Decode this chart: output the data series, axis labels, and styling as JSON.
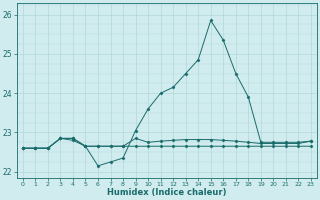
{
  "x_values": [
    0,
    1,
    2,
    3,
    4,
    5,
    6,
    7,
    8,
    9,
    10,
    11,
    12,
    13,
    14,
    15,
    16,
    17,
    18,
    19,
    20,
    21,
    22,
    23
  ],
  "line1": [
    22.6,
    22.6,
    22.6,
    22.85,
    22.85,
    22.65,
    22.65,
    22.65,
    22.65,
    22.65,
    22.65,
    22.65,
    22.65,
    22.65,
    22.65,
    22.65,
    22.65,
    22.65,
    22.65,
    22.65,
    22.65,
    22.65,
    22.65,
    22.65
  ],
  "line2": [
    22.6,
    22.6,
    22.6,
    22.85,
    22.85,
    22.65,
    22.65,
    22.65,
    22.65,
    22.85,
    22.75,
    22.78,
    22.8,
    22.82,
    22.82,
    22.82,
    22.8,
    22.78,
    22.75,
    22.72,
    22.72,
    22.72,
    22.72,
    22.78
  ],
  "line3": [
    22.6,
    22.6,
    22.6,
    22.85,
    22.8,
    22.65,
    22.15,
    22.25,
    22.35,
    23.05,
    23.6,
    24.0,
    24.15,
    24.5,
    24.85,
    25.85,
    25.35,
    24.5,
    23.9,
    22.75,
    22.75,
    22.75,
    22.75,
    22.78
  ],
  "xlim": [
    -0.5,
    23.5
  ],
  "ylim": [
    21.85,
    26.3
  ],
  "yticks": [
    22,
    23,
    24,
    25,
    26
  ],
  "xticks": [
    0,
    1,
    2,
    3,
    4,
    5,
    6,
    7,
    8,
    9,
    10,
    11,
    12,
    13,
    14,
    15,
    16,
    17,
    18,
    19,
    20,
    21,
    22,
    23
  ],
  "xlabel": "Humidex (Indice chaleur)",
  "bg_color": "#d1ecee",
  "grid_color": "#b0d8db",
  "line_color": "#1a6b6b",
  "marker": "D",
  "title": ""
}
